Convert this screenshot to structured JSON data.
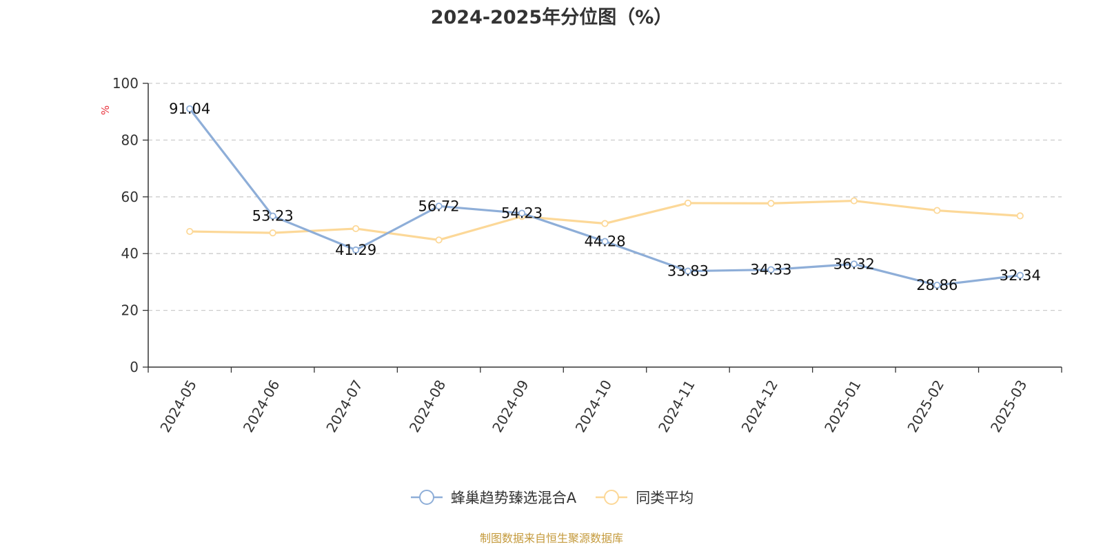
{
  "chart_data": {
    "type": "line",
    "title": "2024-2025年分位图（%）",
    "ylabel": "%",
    "xlabel": "",
    "ylim": [
      0,
      100
    ],
    "yticks": [
      0,
      20,
      40,
      60,
      80,
      100
    ],
    "grid": true,
    "legend_position": "bottom",
    "categories": [
      "2024-05",
      "2024-06",
      "2024-07",
      "2024-08",
      "2024-09",
      "2024-10",
      "2024-11",
      "2024-12",
      "2025-01",
      "2025-02",
      "2025-03"
    ],
    "series": [
      {
        "name": "蜂巢趋势臻选混合A",
        "color": "#8eaed8",
        "values": [
          91.04,
          53.23,
          41.29,
          56.72,
          54.23,
          44.28,
          33.83,
          34.33,
          36.32,
          28.86,
          32.34
        ],
        "show_labels": true
      },
      {
        "name": "同类平均",
        "color": "#fcd898",
        "values": [
          47.8,
          47.3,
          48.8,
          44.8,
          53.1,
          50.6,
          57.8,
          57.7,
          58.6,
          55.2,
          53.3
        ],
        "show_labels": false
      }
    ]
  },
  "source_note": "制图数据来自恒生聚源数据库"
}
